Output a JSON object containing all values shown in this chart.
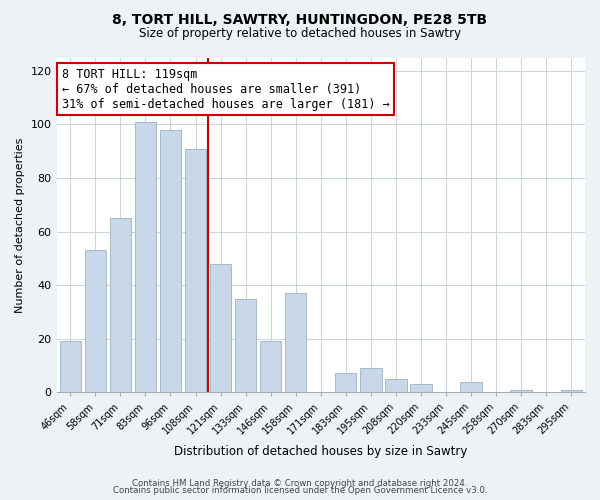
{
  "title": "8, TORT HILL, SAWTRY, HUNTINGDON, PE28 5TB",
  "subtitle": "Size of property relative to detached houses in Sawtry",
  "xlabel": "Distribution of detached houses by size in Sawtry",
  "ylabel": "Number of detached properties",
  "bar_labels": [
    "46sqm",
    "58sqm",
    "71sqm",
    "83sqm",
    "96sqm",
    "108sqm",
    "121sqm",
    "133sqm",
    "146sqm",
    "158sqm",
    "171sqm",
    "183sqm",
    "195sqm",
    "208sqm",
    "220sqm",
    "233sqm",
    "245sqm",
    "258sqm",
    "270sqm",
    "283sqm",
    "295sqm"
  ],
  "bar_values": [
    19,
    53,
    65,
    101,
    98,
    91,
    48,
    35,
    19,
    37,
    0,
    7,
    9,
    5,
    3,
    0,
    4,
    0,
    1,
    0,
    1
  ],
  "bar_color": "#c8d8e8",
  "bar_edge_color": "#9ab4c8",
  "vline_color": "#cc0000",
  "vline_x_between": 5.5,
  "ylim": [
    0,
    125
  ],
  "yticks": [
    0,
    20,
    40,
    60,
    80,
    100,
    120
  ],
  "annotation_title": "8 TORT HILL: 119sqm",
  "annotation_line1": "← 67% of detached houses are smaller (391)",
  "annotation_line2": "31% of semi-detached houses are larger (181) →",
  "annotation_box_color": "#ffffff",
  "annotation_box_edge_color": "#cc0000",
  "footer1": "Contains HM Land Registry data © Crown copyright and database right 2024.",
  "footer2": "Contains public sector information licensed under the Open Government Licence v3.0.",
  "background_color": "#edf2f7",
  "plot_background_color": "#ffffff",
  "grid_color": "#c8d4de"
}
